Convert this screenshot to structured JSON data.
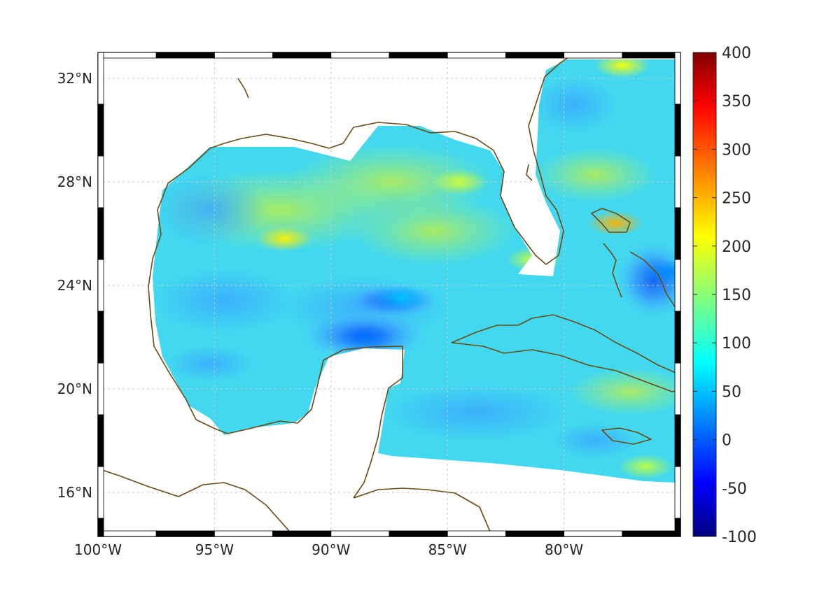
{
  "chart_data": {
    "type": "heatmap",
    "title": "",
    "xlabel": "",
    "ylabel": "",
    "projection": "map (Gulf of Mexico / Caribbean)",
    "xlim": [
      -100,
      -75
    ],
    "ylim": [
      14.3,
      33
    ],
    "colormap": "jet",
    "clim": [
      -100,
      400
    ],
    "grid": true,
    "land_outline_color": "#6b4a14",
    "x_ticks": [
      {
        "value": -100,
        "label": "100°W"
      },
      {
        "value": -95,
        "label": "95°W"
      },
      {
        "value": -90,
        "label": "90°W"
      },
      {
        "value": -85,
        "label": "85°W"
      },
      {
        "value": -80,
        "label": "80°W"
      }
    ],
    "y_ticks": [
      {
        "value": 32,
        "label": "32°N"
      },
      {
        "value": 28,
        "label": "28°N"
      },
      {
        "value": 24,
        "label": "24°N"
      },
      {
        "value": 20,
        "label": "20°N"
      },
      {
        "value": 16,
        "label": "16°N"
      }
    ],
    "colorbar": {
      "ticks": [
        {
          "value": 400,
          "label": "400"
        },
        {
          "value": 350,
          "label": "350"
        },
        {
          "value": 300,
          "label": "300"
        },
        {
          "value": 250,
          "label": "250"
        },
        {
          "value": 200,
          "label": "200"
        },
        {
          "value": 150,
          "label": "150"
        },
        {
          "value": 100,
          "label": "100"
        },
        {
          "value": 50,
          "label": "50"
        },
        {
          "value": 0,
          "label": "0"
        },
        {
          "value": -50,
          "label": "-50"
        },
        {
          "value": -100,
          "label": "-100"
        }
      ]
    },
    "field_summary": {
      "typical_value": 110,
      "features": [
        {
          "name": "western Gulf patch",
          "lon": -92,
          "lat": 25.8,
          "value": 220
        },
        {
          "name": "Bahamas patch",
          "lon": -77.8,
          "lat": 26.4,
          "value": 250
        },
        {
          "name": "Atlantic north patch",
          "lon": -77.5,
          "lat": 32.5,
          "value": 210
        },
        {
          "name": "northeast Gulf patch",
          "lon": -84.5,
          "lat": 28,
          "value": 190
        },
        {
          "name": "Florida Keys patch",
          "lon": -81.3,
          "lat": 25,
          "value": 190
        },
        {
          "name": "southeast Caribbean patch",
          "lon": -76.5,
          "lat": 17,
          "value": 180
        },
        {
          "name": "Yucatan low",
          "lon": -88.5,
          "lat": 22,
          "value": 20
        },
        {
          "name": "Bahamas east low",
          "lon": -75.5,
          "lat": 24.5,
          "value": 30
        },
        {
          "name": "central Gulf low",
          "lon": -87,
          "lat": 23.5,
          "value": 60
        }
      ]
    }
  }
}
